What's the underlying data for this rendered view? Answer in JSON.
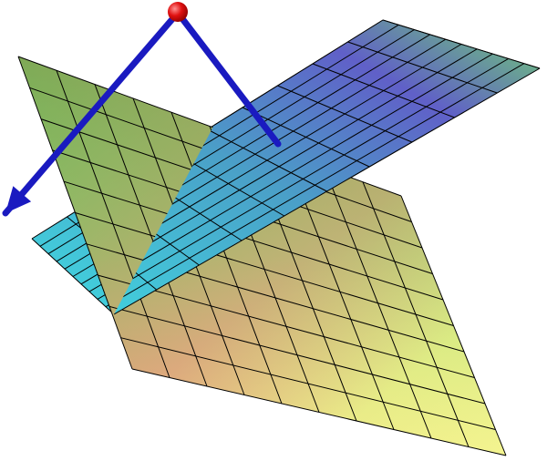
{
  "scene": {
    "grid_divisions": 10,
    "colors": {
      "lower_plane": [
        "#5fd06a",
        "#c8c070",
        "#e89080",
        "#f4f08a",
        "#b8f06a"
      ],
      "upper_plane": [
        "#4ad0c8",
        "#6080d8",
        "#7050c0",
        "#70e070"
      ],
      "grid_line": "#000000",
      "arrow": "#1a1ac0",
      "point": "#e01010"
    }
  }
}
